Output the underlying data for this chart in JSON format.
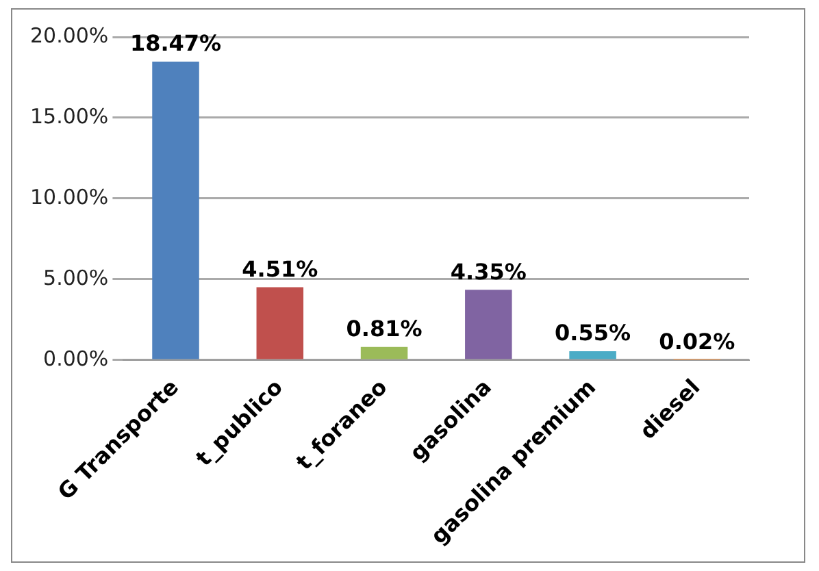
{
  "chart_data": {
    "type": "bar",
    "categories": [
      "G Transporte",
      "t_publico",
      "t_foraneo",
      "gasolina",
      "gasolina premium",
      "diesel"
    ],
    "values": [
      18.47,
      4.51,
      0.81,
      4.35,
      0.55,
      0.02
    ],
    "colors": [
      "#4f81bd",
      "#c0504d",
      "#9bbb59",
      "#8064a2",
      "#4bacc6",
      "#f79646"
    ],
    "value_labels": [
      "18.47%",
      "4.51%",
      "0.81%",
      "4.35%",
      "0.55%",
      "0.02%"
    ],
    "ylim": [
      0,
      20
    ],
    "yticks": [
      {
        "value": 0,
        "label": "0.00%"
      },
      {
        "value": 5,
        "label": "5.00%"
      },
      {
        "value": 10,
        "label": "10.00%"
      },
      {
        "value": 15,
        "label": "15.00%"
      },
      {
        "value": 20,
        "label": "20.00%"
      }
    ],
    "grid": "y",
    "legend": false
  }
}
